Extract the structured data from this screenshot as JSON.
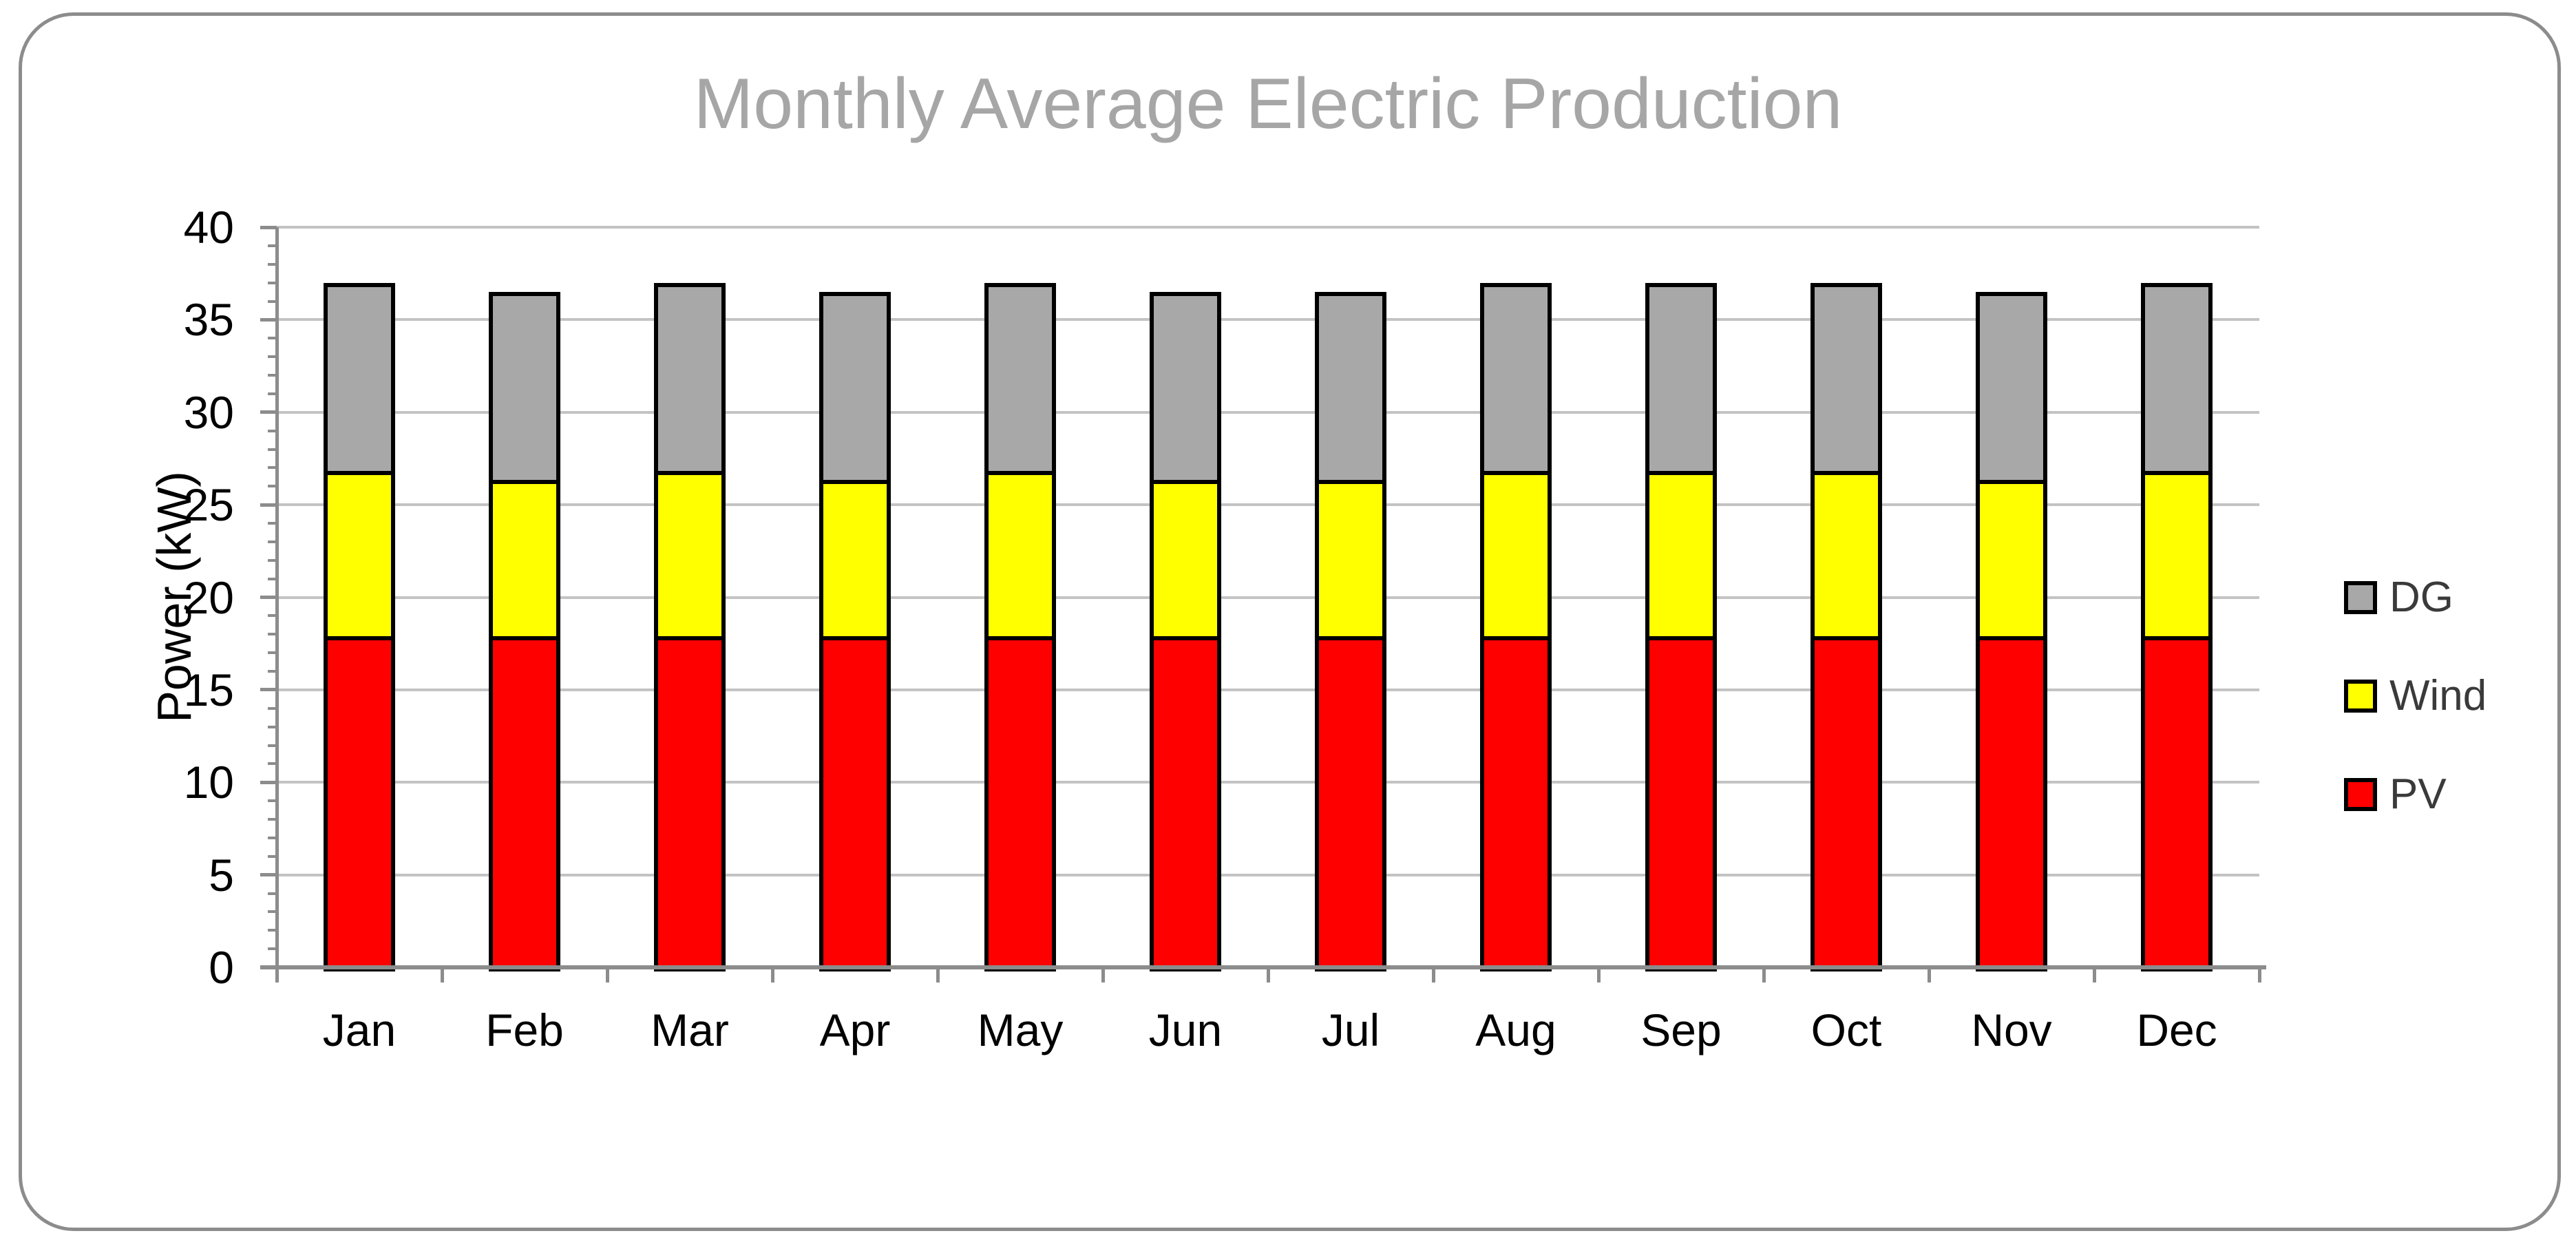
{
  "chart_data": {
    "type": "bar",
    "stacked": true,
    "title": "Monthly Average Electric Production",
    "xlabel": "",
    "ylabel": "Power (kW)",
    "categories": [
      "Jan",
      "Feb",
      "Mar",
      "Apr",
      "May",
      "Jun",
      "Jul",
      "Aug",
      "Sep",
      "Oct",
      "Nov",
      "Dec"
    ],
    "series": [
      {
        "name": "PV",
        "color": "#FF0000",
        "values": [
          18,
          18,
          18,
          18,
          18,
          18,
          18,
          18,
          18,
          18,
          18,
          18
        ]
      },
      {
        "name": "Wind",
        "color": "#FFFF00",
        "values": [
          9,
          8.5,
          9,
          8.5,
          9,
          8.5,
          8.5,
          9,
          9,
          9,
          8.5,
          9
        ]
      },
      {
        "name": "DG",
        "color": "#A8A8A8",
        "values": [
          10,
          10,
          10,
          10,
          10,
          10,
          10,
          10,
          10,
          10,
          10,
          10
        ]
      }
    ],
    "totals": [
      37,
      36.5,
      37,
      36.5,
      37,
      36.5,
      36.5,
      37,
      37,
      37,
      36.5,
      37
    ],
    "ylim": [
      0,
      40
    ],
    "y_ticks": [
      0,
      5,
      10,
      15,
      20,
      25,
      30,
      35,
      40
    ],
    "y_minor_step": 1,
    "grid": true,
    "legend_position": "right",
    "legend_order": [
      "DG",
      "Wind",
      "PV"
    ]
  },
  "colors": {
    "title_text": "#A6A6A6",
    "axis": "#8C8C8C",
    "gridline": "#C3C3C3",
    "bar_outline": "#000000",
    "tick_label_text": "#000000",
    "legend_text": "#3A3A3A",
    "frame_border": "#8C8C8C",
    "background": "#FFFFFF"
  }
}
